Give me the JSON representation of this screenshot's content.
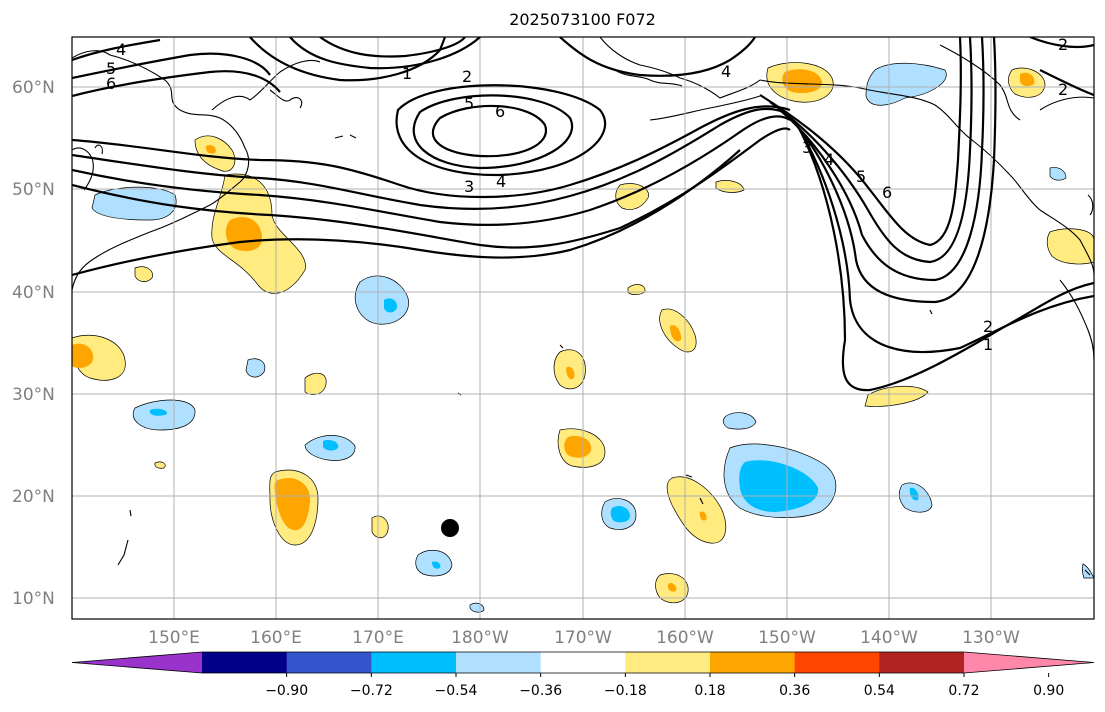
{
  "title": "2025073100 F072",
  "lat_labels": [
    "60°N",
    "50°N",
    "40°N",
    "30°N",
    "20°N",
    "10°N"
  ],
  "lon_labels": [
    "150°E",
    "160°E",
    "170°E",
    "180°W",
    "170°W",
    "160°W",
    "150°W",
    "140°W",
    "130°W"
  ],
  "colorbar": {
    "ticks": [
      "−0.90",
      "−0.72",
      "−0.54",
      "−0.36",
      "−0.18",
      "0.18",
      "0.36",
      "0.54",
      "0.72",
      "0.90"
    ],
    "colors": [
      "#9933cc",
      "#000088",
      "#3355cc",
      "#00bfff",
      "#b0e0ff",
      "#ffffff",
      "#ffeb80",
      "#ffa500",
      "#ff4500",
      "#b22222",
      "#ff88aa"
    ]
  },
  "contour_labels": [
    "1",
    "2",
    "3",
    "4",
    "5",
    "6"
  ],
  "colors": {
    "neg_light": "#b0e0ff",
    "neg_mid": "#00bfff",
    "pos_light": "#ffeb80",
    "pos_mid": "#ffa500"
  }
}
